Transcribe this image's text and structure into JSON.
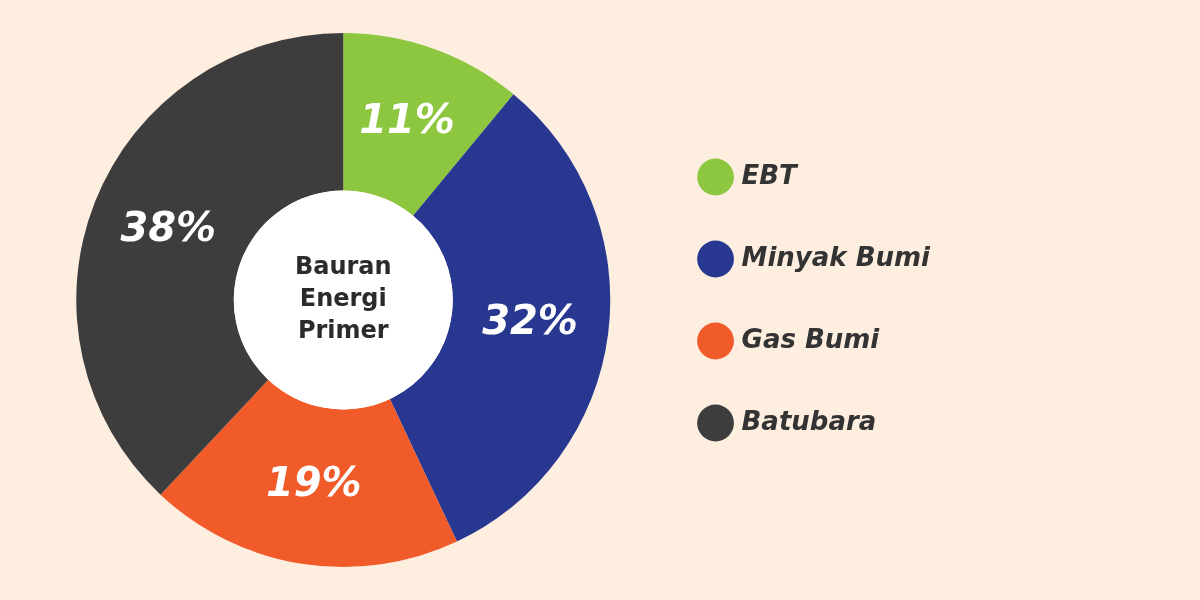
{
  "chart_data": {
    "type": "donut",
    "title": "Bauran Energi Primer",
    "categories": [
      "EBT",
      "Minyak Bumi",
      "Gas Bumi",
      "Batubara"
    ],
    "values": [
      11,
      32,
      19,
      38
    ],
    "colors": [
      "#8dc63f",
      "#283891",
      "#f15a29",
      "#3d3d3d"
    ],
    "value_labels": [
      "11%",
      "32%",
      "19%",
      "38%"
    ],
    "legend": "right"
  }
}
